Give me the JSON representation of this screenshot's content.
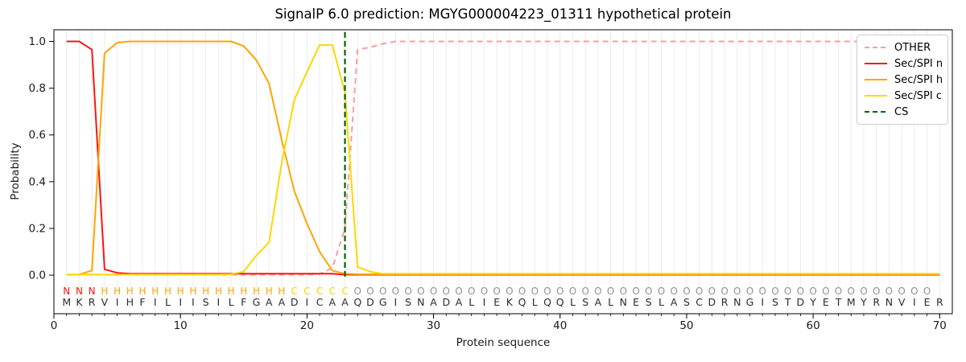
{
  "chart_data": {
    "type": "line",
    "title": "SignalP 6.0 prediction: MGYG000004223_01311 hypothetical protein",
    "xlabel": "Protein sequence",
    "ylabel": "Probability",
    "xlim": [
      0,
      71
    ],
    "ylim": [
      -0.165,
      1.05
    ],
    "grid": "vertical line per residue",
    "legend_position": "upper right",
    "x_ticks": [
      0,
      10,
      20,
      30,
      40,
      50,
      60,
      70
    ],
    "x_tick_labels": [
      "0",
      "10",
      "20",
      "30",
      "40",
      "50",
      "60",
      "70"
    ],
    "y_ticks": [
      0.0,
      0.2,
      0.4,
      0.6,
      0.8,
      1.0
    ],
    "y_tick_labels": [
      "0.0",
      "0.2",
      "0.4",
      "0.6",
      "0.8",
      "1.0"
    ],
    "x_start": 1,
    "series": [
      {
        "id": "other",
        "name": "OTHER",
        "color": "#f6a09e",
        "dash": true,
        "values": [
          0.002,
          0.002,
          0.002,
          0.002,
          0.002,
          0.002,
          0.002,
          0.002,
          0.002,
          0.002,
          0.002,
          0.002,
          0.002,
          0.002,
          0.002,
          0.002,
          0.002,
          0.002,
          0.002,
          0.002,
          0.005,
          0.03,
          0.2,
          0.965,
          0.975,
          0.99,
          1.0,
          1.0,
          1.0,
          1.0,
          1.0,
          1.0,
          1.0,
          1.0,
          1.0,
          1.0,
          1.0,
          1.0,
          1.0,
          1.0,
          1.0,
          1.0,
          1.0,
          1.0,
          1.0,
          1.0,
          1.0,
          1.0,
          1.0,
          1.0,
          1.0,
          1.0,
          1.0,
          1.0,
          1.0,
          1.0,
          1.0,
          1.0,
          1.0,
          1.0,
          1.0,
          1.0,
          1.0,
          1.0,
          1.0,
          1.0,
          1.0,
          1.0,
          1.0,
          1.0
        ]
      },
      {
        "id": "n",
        "name": "Sec/SPI n",
        "color": "#fa1414",
        "dash": false,
        "values": [
          1.0,
          1.0,
          0.965,
          0.025,
          0.01,
          0.006,
          0.006,
          0.006,
          0.006,
          0.006,
          0.006,
          0.006,
          0.006,
          0.006,
          0.006,
          0.006,
          0.006,
          0.006,
          0.006,
          0.006,
          0.006,
          0.006,
          0.002,
          0.002,
          0.002,
          0.002,
          0.002,
          0.002,
          0.002,
          0.002,
          0.002,
          0.002,
          0.002,
          0.002,
          0.002,
          0.002,
          0.002,
          0.002,
          0.002,
          0.002,
          0.002,
          0.002,
          0.002,
          0.002,
          0.002,
          0.002,
          0.002,
          0.002,
          0.002,
          0.002,
          0.002,
          0.002,
          0.002,
          0.002,
          0.002,
          0.002,
          0.002,
          0.002,
          0.002,
          0.002,
          0.002,
          0.002,
          0.002,
          0.002,
          0.002,
          0.002,
          0.002,
          0.002,
          0.002,
          0.002
        ]
      },
      {
        "id": "h",
        "name": "Sec/SPI h",
        "color": "#ffa500",
        "dash": false,
        "values": [
          0.002,
          0.003,
          0.02,
          0.95,
          0.995,
          1.0,
          1.0,
          1.0,
          1.0,
          1.0,
          1.0,
          1.0,
          1.0,
          1.0,
          0.98,
          0.92,
          0.82,
          0.58,
          0.36,
          0.22,
          0.1,
          0.02,
          0.006,
          0.004,
          0.004,
          0.004,
          0.004,
          0.004,
          0.004,
          0.004,
          0.004,
          0.004,
          0.004,
          0.004,
          0.004,
          0.004,
          0.004,
          0.004,
          0.004,
          0.004,
          0.004,
          0.004,
          0.004,
          0.004,
          0.004,
          0.004,
          0.004,
          0.004,
          0.004,
          0.004,
          0.004,
          0.004,
          0.004,
          0.004,
          0.004,
          0.004,
          0.004,
          0.004,
          0.004,
          0.004,
          0.004,
          0.004,
          0.004,
          0.004,
          0.004,
          0.004,
          0.004,
          0.004,
          0.004,
          0.004
        ]
      },
      {
        "id": "c",
        "name": "Sec/SPI c",
        "color": "#ffd700",
        "dash": false,
        "values": [
          0.003,
          0.003,
          0.003,
          0.003,
          0.003,
          0.003,
          0.003,
          0.003,
          0.003,
          0.003,
          0.003,
          0.003,
          0.003,
          0.004,
          0.015,
          0.085,
          0.14,
          0.48,
          0.75,
          0.87,
          0.985,
          0.985,
          0.78,
          0.035,
          0.015,
          0.006,
          0.006,
          0.006,
          0.006,
          0.006,
          0.006,
          0.006,
          0.006,
          0.006,
          0.006,
          0.006,
          0.006,
          0.006,
          0.006,
          0.006,
          0.006,
          0.006,
          0.006,
          0.006,
          0.006,
          0.006,
          0.006,
          0.006,
          0.006,
          0.006,
          0.006,
          0.006,
          0.006,
          0.006,
          0.006,
          0.006,
          0.006,
          0.006,
          0.006,
          0.006,
          0.006,
          0.006,
          0.006,
          0.006,
          0.006,
          0.006,
          0.006,
          0.006,
          0.006,
          0.006
        ]
      }
    ],
    "cs_marker": {
      "id": "cs",
      "name": "CS",
      "color": "#006400",
      "dash": true,
      "position": 23
    },
    "sequence": "MKRVIHFILIISILFGAADICAAQDGISNADALIEKQLQQLSALNESLASCDRNGISTDYETMYRNVIER",
    "region_labels": "NNNHHHHHHHHHHHHHHHCCCCCOOOOOOOOOOOOOOOOOOOOOOOOOOOOOOOOOOOOOOOOOOOOOO",
    "region_colors": {
      "N": "#fa1414",
      "H": "#ffa500",
      "C": "#ffd700",
      "O": "#919191"
    },
    "colors": {
      "grid": "#ececec",
      "spine": "#000000",
      "tick_label": "#1a1a1a",
      "sequence_letter": "#2d2d2d"
    }
  }
}
